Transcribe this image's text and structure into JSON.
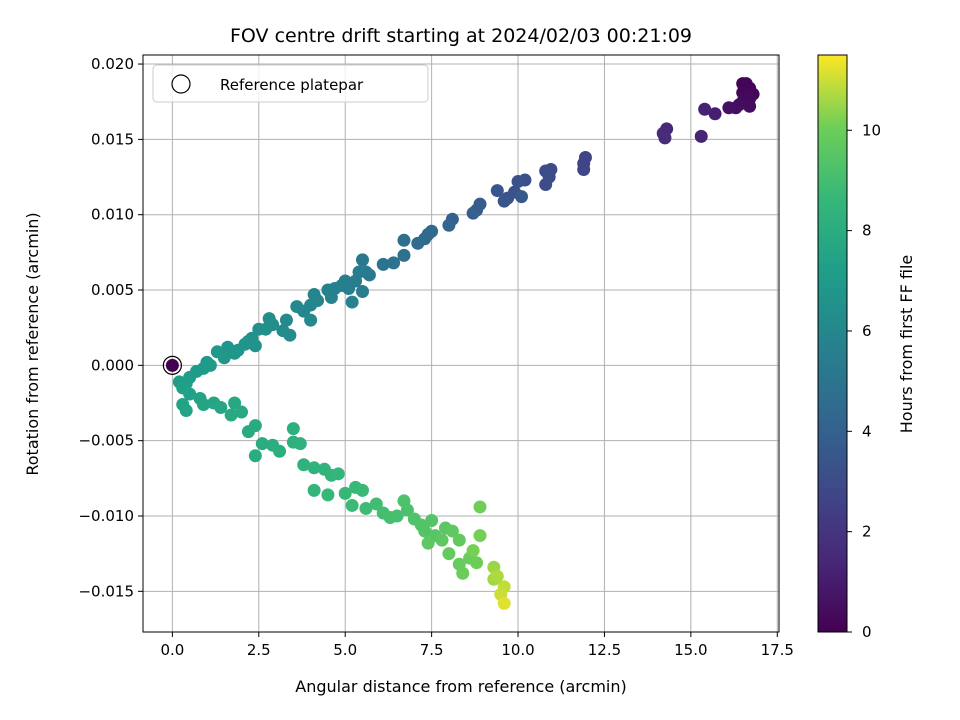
{
  "chart_data": {
    "type": "scatter",
    "title": "FOV centre drift starting at 2024/02/03 00:21:09",
    "xlabel": "Angular distance from reference (arcmin)",
    "ylabel": "Rotation from reference (arcmin)",
    "xlim": [
      -0.85,
      17.55
    ],
    "ylim": [
      -0.0177,
      0.0206
    ],
    "xticks": [
      0.0,
      2.5,
      5.0,
      7.5,
      10.0,
      12.5,
      15.0,
      17.5
    ],
    "xtick_labels": [
      "0.0",
      "2.5",
      "5.0",
      "7.5",
      "10.0",
      "12.5",
      "15.0",
      "17.5"
    ],
    "yticks": [
      -0.015,
      -0.01,
      -0.005,
      0.0,
      0.005,
      0.01,
      0.015,
      0.02
    ],
    "ytick_labels": [
      "−0.015",
      "−0.010",
      "−0.005",
      "0.000",
      "0.005",
      "0.010",
      "0.015",
      "0.020"
    ],
    "grid": true,
    "legend": {
      "placement": "upper-left",
      "entries": [
        "Reference platepar"
      ]
    },
    "colorbar": {
      "label": "Hours from first FF file",
      "range": [
        0,
        11.5
      ],
      "ticks": [
        0,
        2,
        4,
        6,
        8,
        10
      ],
      "tick_labels": [
        "0",
        "2",
        "4",
        "6",
        "8",
        "10"
      ],
      "colormap": "viridis"
    },
    "reference_point": {
      "x": 0.0,
      "y": 0.0,
      "hours": 0.0
    },
    "series": [
      {
        "points": [
          [
            16.6,
            0.0187,
            0.1
          ],
          [
            16.5,
            0.0187,
            0.1
          ],
          [
            16.7,
            0.0184,
            0.15
          ],
          [
            16.5,
            0.0181,
            0.2
          ],
          [
            16.8,
            0.018,
            0.2
          ],
          [
            16.6,
            0.0179,
            0.25
          ],
          [
            16.7,
            0.0177,
            0.3
          ],
          [
            16.5,
            0.0175,
            0.35
          ],
          [
            16.7,
            0.0172,
            0.4
          ],
          [
            16.4,
            0.0173,
            0.45
          ],
          [
            16.3,
            0.0171,
            0.5
          ],
          [
            16.1,
            0.0171,
            0.55
          ],
          [
            15.7,
            0.0167,
            1.1
          ],
          [
            15.4,
            0.017,
            1.2
          ],
          [
            15.3,
            0.0152,
            1.3
          ],
          [
            14.3,
            0.0157,
            1.5
          ],
          [
            14.2,
            0.0154,
            1.55
          ],
          [
            14.25,
            0.0151,
            1.6
          ],
          [
            11.95,
            0.0138,
            2.6
          ],
          [
            11.9,
            0.0134,
            2.65
          ],
          [
            11.9,
            0.013,
            2.7
          ],
          [
            10.95,
            0.013,
            2.9
          ],
          [
            10.8,
            0.0129,
            2.95
          ],
          [
            10.9,
            0.0125,
            3.0
          ],
          [
            10.8,
            0.012,
            3.05
          ],
          [
            10.2,
            0.0123,
            3.2
          ],
          [
            10.0,
            0.0122,
            3.25
          ],
          [
            9.9,
            0.0115,
            3.3
          ],
          [
            9.7,
            0.0111,
            3.4
          ],
          [
            9.6,
            0.0109,
            3.45
          ],
          [
            9.4,
            0.0116,
            3.5
          ],
          [
            10.1,
            0.0112,
            3.6
          ],
          [
            8.9,
            0.0107,
            3.8
          ],
          [
            8.8,
            0.0103,
            3.85
          ],
          [
            8.7,
            0.0101,
            3.9
          ],
          [
            8.1,
            0.0097,
            4.1
          ],
          [
            8.0,
            0.0093,
            4.2
          ],
          [
            7.5,
            0.0089,
            4.4
          ],
          [
            7.4,
            0.0087,
            4.45
          ],
          [
            7.3,
            0.0084,
            4.5
          ],
          [
            7.1,
            0.0081,
            4.55
          ],
          [
            6.7,
            0.0083,
            4.7
          ],
          [
            6.7,
            0.0073,
            4.8
          ],
          [
            6.4,
            0.0068,
            4.9
          ],
          [
            6.1,
            0.0067,
            5.0
          ],
          [
            5.5,
            0.007,
            5.2
          ],
          [
            5.6,
            0.0062,
            5.25
          ],
          [
            5.7,
            0.006,
            5.3
          ],
          [
            5.4,
            0.0062,
            5.35
          ],
          [
            5.3,
            0.0056,
            5.4
          ],
          [
            5.5,
            0.0049,
            5.45
          ],
          [
            5.1,
            0.0051,
            5.5
          ],
          [
            4.9,
            0.0053,
            5.55
          ],
          [
            5.0,
            0.0056,
            5.6
          ],
          [
            4.7,
            0.0051,
            5.65
          ],
          [
            4.5,
            0.005,
            5.7
          ],
          [
            5.2,
            0.0042,
            5.75
          ],
          [
            4.6,
            0.0045,
            5.8
          ],
          [
            4.1,
            0.0047,
            5.85
          ],
          [
            4.2,
            0.0043,
            5.9
          ],
          [
            4.0,
            0.004,
            5.95
          ],
          [
            3.8,
            0.0036,
            6.0
          ],
          [
            4.0,
            0.003,
            6.05
          ],
          [
            3.6,
            0.0039,
            6.1
          ],
          [
            3.3,
            0.003,
            6.15
          ],
          [
            3.2,
            0.0023,
            6.2
          ],
          [
            3.4,
            0.002,
            6.25
          ],
          [
            2.8,
            0.0031,
            6.3
          ],
          [
            2.9,
            0.0027,
            6.35
          ],
          [
            2.7,
            0.0024,
            6.4
          ],
          [
            2.5,
            0.0024,
            6.45
          ],
          [
            2.3,
            0.0018,
            6.5
          ],
          [
            2.2,
            0.0016,
            6.55
          ],
          [
            2.4,
            0.0013,
            6.6
          ],
          [
            2.1,
            0.0014,
            6.65
          ],
          [
            1.9,
            0.001,
            6.7
          ],
          [
            1.6,
            0.0012,
            6.75
          ],
          [
            1.8,
            0.0008,
            6.8
          ],
          [
            1.5,
            0.0005,
            6.85
          ],
          [
            1.3,
            0.0009,
            6.9
          ],
          [
            1.0,
            0.0002,
            6.95
          ],
          [
            1.1,
            0.0,
            7.0
          ],
          [
            0.9,
            -0.0002,
            7.05
          ],
          [
            0.7,
            -0.0004,
            7.1
          ],
          [
            0.5,
            -0.0008,
            7.15
          ],
          [
            0.4,
            -0.0012,
            7.2
          ],
          [
            0.2,
            -0.0011,
            7.25
          ],
          [
            0.3,
            -0.0015,
            7.3
          ],
          [
            0.5,
            -0.0019,
            7.35
          ],
          [
            0.8,
            -0.0022,
            7.4
          ],
          [
            0.3,
            -0.0026,
            7.45
          ],
          [
            0.4,
            -0.003,
            7.5
          ],
          [
            0.9,
            -0.0026,
            7.55
          ],
          [
            1.2,
            -0.0025,
            7.6
          ],
          [
            1.4,
            -0.0028,
            7.65
          ],
          [
            1.8,
            -0.0025,
            7.7
          ],
          [
            2.0,
            -0.0031,
            7.75
          ],
          [
            1.7,
            -0.0033,
            7.8
          ],
          [
            2.2,
            -0.0044,
            7.85
          ],
          [
            2.4,
            -0.004,
            7.9
          ],
          [
            2.6,
            -0.0052,
            7.95
          ],
          [
            2.4,
            -0.006,
            8.0
          ],
          [
            2.9,
            -0.0053,
            8.05
          ],
          [
            3.1,
            -0.0057,
            8.1
          ],
          [
            3.5,
            -0.0051,
            8.15
          ],
          [
            3.5,
            -0.0042,
            8.2
          ],
          [
            3.7,
            -0.0052,
            8.25
          ],
          [
            3.8,
            -0.0066,
            8.3
          ],
          [
            4.1,
            -0.0068,
            8.35
          ],
          [
            4.4,
            -0.0069,
            8.4
          ],
          [
            4.1,
            -0.0083,
            8.45
          ],
          [
            4.6,
            -0.0073,
            8.5
          ],
          [
            4.8,
            -0.0072,
            8.55
          ],
          [
            4.5,
            -0.0086,
            8.6
          ],
          [
            5.0,
            -0.0085,
            8.65
          ],
          [
            5.3,
            -0.0081,
            8.7
          ],
          [
            5.5,
            -0.0083,
            8.75
          ],
          [
            5.2,
            -0.0093,
            8.8
          ],
          [
            5.6,
            -0.0095,
            8.9
          ],
          [
            5.9,
            -0.0092,
            8.95
          ],
          [
            6.1,
            -0.0098,
            9.0
          ],
          [
            6.3,
            -0.0101,
            9.05
          ],
          [
            6.5,
            -0.01,
            9.1
          ],
          [
            6.8,
            -0.0096,
            9.2
          ],
          [
            6.7,
            -0.009,
            9.25
          ],
          [
            7.0,
            -0.0102,
            9.3
          ],
          [
            7.2,
            -0.0106,
            9.35
          ],
          [
            7.3,
            -0.011,
            9.4
          ],
          [
            7.5,
            -0.0103,
            9.45
          ],
          [
            7.6,
            -0.0113,
            9.5
          ],
          [
            7.9,
            -0.0108,
            9.55
          ],
          [
            7.4,
            -0.0118,
            9.6
          ],
          [
            7.8,
            -0.0116,
            9.65
          ],
          [
            8.1,
            -0.011,
            9.7
          ],
          [
            8.3,
            -0.0116,
            9.75
          ],
          [
            8.0,
            -0.0125,
            9.8
          ],
          [
            8.3,
            -0.0132,
            9.85
          ],
          [
            8.6,
            -0.0128,
            9.9
          ],
          [
            8.4,
            -0.0138,
            9.95
          ],
          [
            8.8,
            -0.0131,
            10.0
          ],
          [
            8.9,
            -0.0094,
            10.05
          ],
          [
            8.9,
            -0.0113,
            10.1
          ],
          [
            8.7,
            -0.0123,
            10.15
          ],
          [
            9.3,
            -0.0134,
            10.5
          ],
          [
            9.3,
            -0.0142,
            10.6
          ],
          [
            9.4,
            -0.014,
            10.7
          ],
          [
            9.6,
            -0.0147,
            10.9
          ],
          [
            9.5,
            -0.0152,
            11.0
          ],
          [
            9.6,
            -0.0158,
            11.2
          ]
        ]
      }
    ]
  }
}
